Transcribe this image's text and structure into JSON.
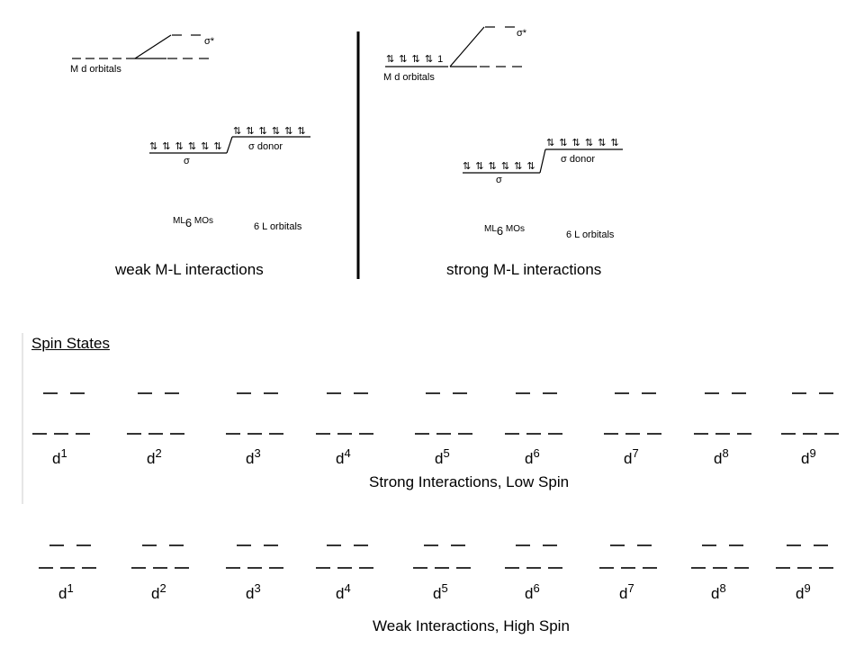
{
  "top": {
    "left": {
      "sigma_star": "σ*",
      "md_orbitals": "M d orbitals",
      "ml6_mos_prefix": "ML",
      "ml6_mos_sub": "6",
      "ml6_mos_suffix": " MOs",
      "sigma": "σ",
      "sigma_donor": "σ donor",
      "l_orbitals": "6  L orbitals",
      "caption": "weak M-L interactions",
      "mo_arrows": "⇅ ⇅ ⇅ ⇅ ⇅ ⇅",
      "donor_arrows": "⇅ ⇅ ⇅ ⇅ ⇅ ⇅"
    },
    "right": {
      "sigma_star": "σ*",
      "md_arrows": "⇅ ⇅ ⇅ ⇅ 1",
      "md_orbitals": "M d orbitals",
      "ml6_mos_prefix": "ML",
      "ml6_mos_sub": "6",
      "ml6_mos_suffix": " MOs",
      "sigma": "σ",
      "sigma_donor": "σ donor",
      "l_orbitals": "6  L orbitals",
      "caption": "strong M-L interactions",
      "mo_arrows": "⇅ ⇅ ⇅ ⇅ ⇅ ⇅",
      "donor_arrows": "⇅ ⇅ ⇅ ⇅ ⇅ ⇅"
    }
  },
  "spin_states": {
    "title": "Spin States",
    "low_spin": {
      "caption": "Strong Interactions, Low Spin",
      "labels": [
        {
          "base": "d",
          "exp": "1"
        },
        {
          "base": "d",
          "exp": "2"
        },
        {
          "base": "d",
          "exp": "3"
        },
        {
          "base": "d",
          "exp": "4"
        },
        {
          "base": "d",
          "exp": "5"
        },
        {
          "base": "d",
          "exp": "6"
        },
        {
          "base": "d",
          "exp": "7"
        },
        {
          "base": "d",
          "exp": "8"
        },
        {
          "base": "d",
          "exp": "9"
        }
      ]
    },
    "high_spin": {
      "caption": "Weak Interactions, High Spin",
      "labels": [
        {
          "base": "d",
          "exp": "1"
        },
        {
          "base": "d",
          "exp": "2"
        },
        {
          "base": "d",
          "exp": "3"
        },
        {
          "base": "d",
          "exp": "4"
        },
        {
          "base": "d",
          "exp": "5"
        },
        {
          "base": "d",
          "exp": "6"
        },
        {
          "base": "d",
          "exp": "7"
        },
        {
          "base": "d",
          "exp": "8"
        },
        {
          "base": "d",
          "exp": "9"
        }
      ]
    }
  }
}
